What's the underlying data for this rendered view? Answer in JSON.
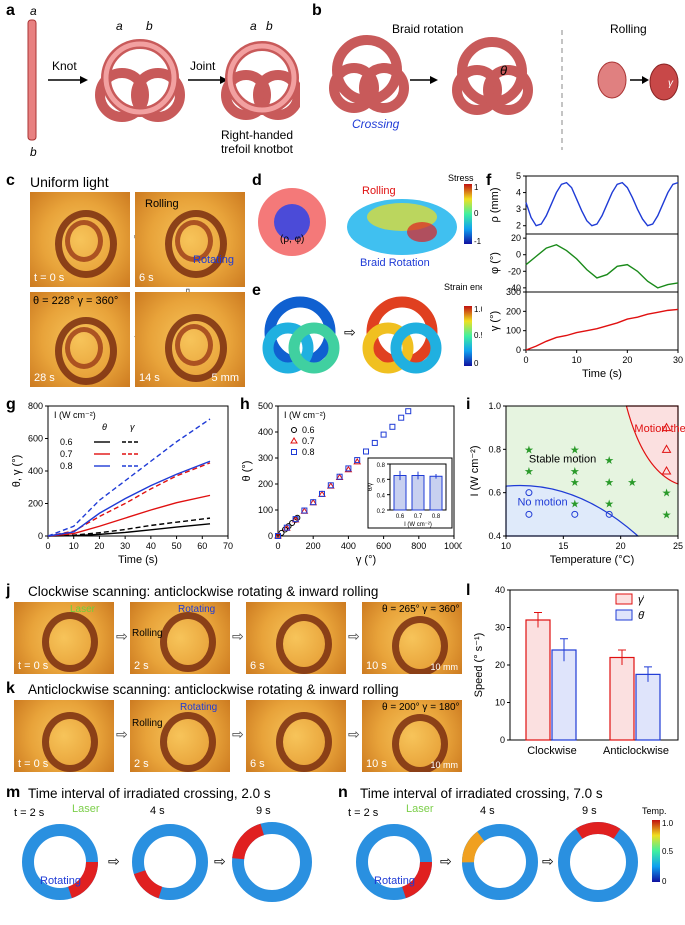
{
  "panels": {
    "a": {
      "label": "a",
      "end_a": "a",
      "end_b": "b",
      "knot_a": "a",
      "knot_b": "b",
      "joint_a": "a",
      "joint_b": "b",
      "step1": "Knot",
      "step2": "Joint",
      "caption": "Right-handed trefoil knotbot"
    },
    "b": {
      "label": "b",
      "title1": "Braid rotation",
      "title2": "Rolling",
      "crossing": "Crossing",
      "theta": "θ",
      "gamma": "γ"
    },
    "c": {
      "label": "c",
      "title": "Uniform light",
      "t0": "t = 0 s",
      "t6": "6 s",
      "t14": "14 s",
      "t28": "28 s",
      "rolling": "Rolling",
      "rotating": "Rotating",
      "state": "θ = 228°  γ = 360°",
      "scale": "5 mm"
    },
    "d": {
      "label": "d",
      "stress": "Stress",
      "rolling": "Rolling",
      "braid": "Braid Rotation",
      "coord": "(ρ, φ)",
      "cb_max": "1",
      "cb_mid": "0",
      "cb_min": "-1"
    },
    "e": {
      "label": "e",
      "strain": "Strain energy",
      "cb_max": "1.0",
      "cb_mid": "0.5",
      "cb_min": "0"
    },
    "f": {
      "label": "f"
    },
    "g": {
      "label": "g"
    },
    "h": {
      "label": "h"
    },
    "i": {
      "label": "i"
    },
    "j": {
      "label": "j",
      "title": "Clockwise scanning: anticlockwise rotating & inward rolling",
      "laser": "Laser",
      "rolling": "Rolling",
      "rotating": "Rotating",
      "t0": "t = 0 s",
      "t2": "2 s",
      "t6": "6 s",
      "t10": "10 s",
      "state": "θ = 265°  γ = 360°",
      "scale": "10 mm"
    },
    "k": {
      "label": "k",
      "title": "Anticlockwise scanning: anticlockwise rotating & inward rolling",
      "rolling": "Rolling",
      "rotating": "Rotating",
      "t0": "t = 0 s",
      "t2": "2 s",
      "t6": "6 s",
      "t10": "10 s",
      "state": "θ = 200°  γ = 180°",
      "scale": "10 mm"
    },
    "l": {
      "label": "l"
    },
    "m": {
      "label": "m",
      "title": "Time interval of irradiated crossing, 2.0 s",
      "laser": "Laser",
      "rotating": "Rotating",
      "t2": "t = 2 s",
      "t4": "4 s",
      "t9": "9 s"
    },
    "n": {
      "label": "n",
      "title": "Time interval of irradiated crossing, 7.0 s",
      "laser": "Laser",
      "rotating": "Rotating",
      "t2": "t = 2 s",
      "t4": "4 s",
      "t9": "9 s",
      "temp": "Temp.",
      "cb_max": "1.0",
      "cb_mid": "0.5",
      "cb_min": "0"
    }
  },
  "chart_data": [
    {
      "id": "f",
      "type": "line",
      "xlabel": "Time (s)",
      "xlim": [
        0,
        30
      ],
      "xticks": [
        "0",
        "10",
        "20",
        "30"
      ],
      "subplots": [
        {
          "ylabel": "ρ (mm)",
          "ylim": [
            1.5,
            5
          ],
          "yticks": [
            "2",
            "3",
            "4",
            "5"
          ],
          "color": "#1f3bd6",
          "x": [
            0,
            1,
            2,
            3,
            4,
            5,
            6,
            7,
            8,
            9,
            10,
            11,
            12,
            13,
            14,
            15,
            16,
            17,
            18,
            19,
            20,
            21,
            22,
            23,
            24,
            25,
            26,
            27,
            28,
            29,
            30
          ],
          "y": [
            3.4,
            2.5,
            2.0,
            2.1,
            2.6,
            3.3,
            4.0,
            4.5,
            4.6,
            4.3,
            3.6,
            2.9,
            2.3,
            2.0,
            2.1,
            2.6,
            3.3,
            4.0,
            4.5,
            4.6,
            4.3,
            3.7,
            3.0,
            2.4,
            2.0,
            2.1,
            2.6,
            3.3,
            4.0,
            4.5,
            4.6
          ]
        },
        {
          "ylabel": "φ (°)",
          "ylim": [
            -45,
            25
          ],
          "yticks": [
            "-40",
            "-20",
            "0",
            "20"
          ],
          "color": "#1a8a1a",
          "x": [
            0,
            2,
            4,
            6,
            8,
            10,
            12,
            14,
            16,
            18,
            20,
            22,
            24,
            26,
            28,
            30
          ],
          "y": [
            -12,
            -2,
            8,
            12,
            5,
            -5,
            -18,
            -28,
            -24,
            -14,
            -12,
            -20,
            -32,
            -40,
            -36,
            -34
          ]
        },
        {
          "ylabel": "γ (°)",
          "ylim": [
            0,
            300
          ],
          "yticks": [
            "0",
            "100",
            "200",
            "300"
          ],
          "color": "#e01010",
          "x": [
            0,
            2,
            4,
            6,
            8,
            10,
            12,
            14,
            16,
            18,
            20,
            22,
            24,
            26,
            28,
            30
          ],
          "y": [
            0,
            20,
            45,
            65,
            75,
            90,
            100,
            110,
            125,
            140,
            160,
            170,
            185,
            195,
            205,
            210
          ]
        }
      ]
    },
    {
      "id": "g",
      "type": "line",
      "xlabel": "Time (s)",
      "ylabel": "θ, γ (°)",
      "xlim": [
        0,
        70
      ],
      "ylim": [
        0,
        800
      ],
      "xticks": [
        "0",
        "10",
        "20",
        "30",
        "40",
        "50",
        "60",
        "70"
      ],
      "yticks": [
        "0",
        "200",
        "400",
        "600",
        "800"
      ],
      "legend_title": "I (W cm⁻²)",
      "legend_theta": "θ",
      "legend_gamma": "γ",
      "series": [
        {
          "name": "0.6",
          "color": "#000000",
          "dash": false,
          "x": [
            0,
            10,
            20,
            30,
            40,
            50,
            63
          ],
          "y": [
            0,
            2,
            10,
            22,
            38,
            55,
            75
          ]
        },
        {
          "name": "0.6",
          "color": "#000000",
          "dash": true,
          "x": [
            0,
            10,
            20,
            30,
            40,
            50,
            63
          ],
          "y": [
            0,
            5,
            20,
            40,
            65,
            85,
            110
          ]
        },
        {
          "name": "0.7",
          "color": "#e01010",
          "dash": false,
          "x": [
            0,
            10,
            20,
            30,
            40,
            50,
            63
          ],
          "y": [
            0,
            15,
            60,
            110,
            160,
            205,
            250
          ]
        },
        {
          "name": "0.7",
          "color": "#e01010",
          "dash": true,
          "x": [
            0,
            10,
            20,
            30,
            40,
            50,
            63
          ],
          "y": [
            0,
            30,
            120,
            200,
            290,
            370,
            450
          ]
        },
        {
          "name": "0.8",
          "color": "#1f3bd6",
          "dash": false,
          "x": [
            0,
            10,
            20,
            30,
            40,
            50,
            63
          ],
          "y": [
            0,
            25,
            140,
            230,
            310,
            380,
            460
          ]
        },
        {
          "name": "0.8",
          "color": "#1f3bd6",
          "dash": true,
          "x": [
            0,
            10,
            20,
            30,
            40,
            50,
            63
          ],
          "y": [
            0,
            60,
            220,
            340,
            460,
            580,
            720
          ]
        }
      ]
    },
    {
      "id": "h",
      "type": "scatter",
      "xlabel": "γ (°)",
      "ylabel": "θ (°)",
      "xlim": [
        0,
        1000
      ],
      "ylim": [
        0,
        500
      ],
      "xticks": [
        "0",
        "100",
        "200",
        "300",
        "400",
        "500",
        "600",
        "700",
        "800",
        "900",
        "1000"
      ],
      "yticks": [
        "0",
        "100",
        "200",
        "300",
        "400",
        "500"
      ],
      "legend_title": "I (W cm⁻²)",
      "series": [
        {
          "name": "0.6",
          "color": "#000000",
          "marker": "circle",
          "x": [
            0,
            20,
            40,
            60,
            80,
            100,
            110
          ],
          "y": [
            0,
            12,
            25,
            38,
            50,
            62,
            70
          ]
        },
        {
          "name": "0.7",
          "color": "#e01010",
          "marker": "triangle",
          "x": [
            0,
            50,
            100,
            150,
            200,
            250,
            300,
            350,
            400,
            450
          ],
          "y": [
            0,
            30,
            62,
            95,
            128,
            160,
            192,
            225,
            255,
            285
          ]
        },
        {
          "name": "0.8",
          "color": "#1f3bd6",
          "marker": "square",
          "x": [
            0,
            50,
            100,
            150,
            200,
            250,
            300,
            350,
            400,
            450,
            500,
            550,
            600,
            650,
            700,
            740
          ],
          "y": [
            0,
            32,
            65,
            98,
            130,
            162,
            195,
            228,
            260,
            292,
            325,
            358,
            390,
            420,
            455,
            480
          ]
        }
      ],
      "inset": {
        "type": "bar",
        "ylabel": "θ̇/γ̇",
        "xlabel": "I (W cm⁻²)",
        "categories": [
          "0.6",
          "0.7",
          "0.8"
        ],
        "values": [
          0.65,
          0.65,
          0.64
        ],
        "errors": [
          0.06,
          0.05,
          0.03
        ],
        "ylim": [
          0.2,
          0.8
        ],
        "yticks": [
          "0.2",
          "0.4",
          "0.6",
          "0.8"
        ]
      }
    },
    {
      "id": "i",
      "type": "scatter",
      "xlabel": "Temperature (°C)",
      "ylabel": "I (W cm⁻²)",
      "xlim": [
        10,
        25
      ],
      "ylim": [
        0.4,
        1.0
      ],
      "xticks": [
        "10",
        "15",
        "20",
        "25"
      ],
      "yticks": [
        "0.4",
        "0.6",
        "0.8",
        "1.0"
      ],
      "regions": [
        "Stable motion",
        "No motion",
        "Motion then halt"
      ],
      "stars": [
        [
          12,
          0.8
        ],
        [
          12,
          0.7
        ],
        [
          16,
          0.8
        ],
        [
          16,
          0.7
        ],
        [
          16,
          0.65
        ],
        [
          19,
          0.75
        ],
        [
          19,
          0.65
        ],
        [
          19,
          0.55
        ],
        [
          21,
          0.65
        ],
        [
          24,
          0.6
        ],
        [
          24,
          0.5
        ],
        [
          16,
          0.55
        ]
      ],
      "circles": [
        [
          12,
          0.6
        ],
        [
          12,
          0.5
        ],
        [
          16,
          0.5
        ],
        [
          19,
          0.5
        ]
      ],
      "triangles": [
        [
          24,
          0.8
        ],
        [
          24,
          0.9
        ],
        [
          24,
          0.7
        ]
      ]
    },
    {
      "id": "l",
      "type": "bar",
      "ylabel": "Speed (° s⁻¹)",
      "ylim": [
        0,
        40
      ],
      "yticks": [
        "0",
        "10",
        "20",
        "30",
        "40"
      ],
      "categories": [
        "Clockwise",
        "Anticlockwise"
      ],
      "series": [
        {
          "name": "γ̇",
          "color": "#e01010",
          "values": [
            32,
            22
          ],
          "errors": [
            2,
            2
          ]
        },
        {
          "name": "θ̇",
          "color": "#1f3bd6",
          "values": [
            24,
            17.5
          ],
          "errors": [
            3,
            2
          ]
        }
      ]
    }
  ]
}
